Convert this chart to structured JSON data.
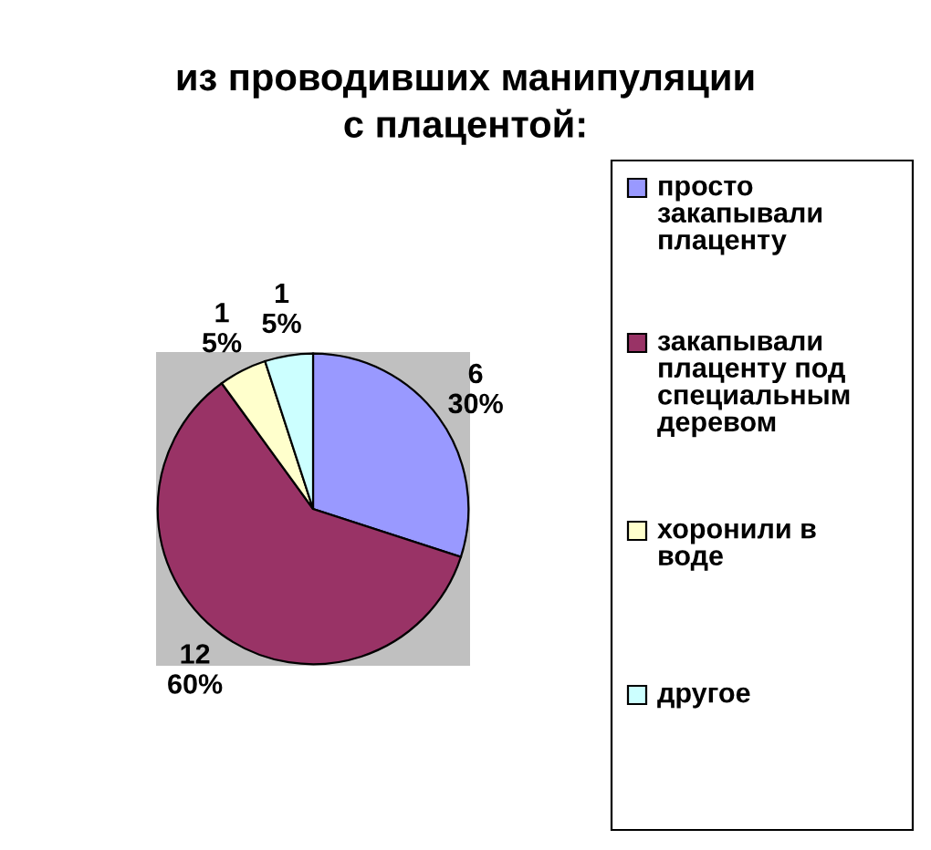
{
  "chart_data": {
    "type": "pie",
    "title": "из проводивших манипуляции\nс плацентой:",
    "categories": [
      "просто\nзакапывали\nплаценту",
      "закапывали\nплаценту под\nспециальным\nдеревом",
      "хоронили в\nводе",
      "другое"
    ],
    "values": [
      6,
      12,
      1,
      1
    ],
    "value_labels": [
      "6\n30%",
      "12\n60%",
      "1\n5%",
      "1\n5%"
    ],
    "colors": [
      "#9999ff",
      "#993366",
      "#ffffcc",
      "#ccffff"
    ],
    "legend": "right"
  }
}
